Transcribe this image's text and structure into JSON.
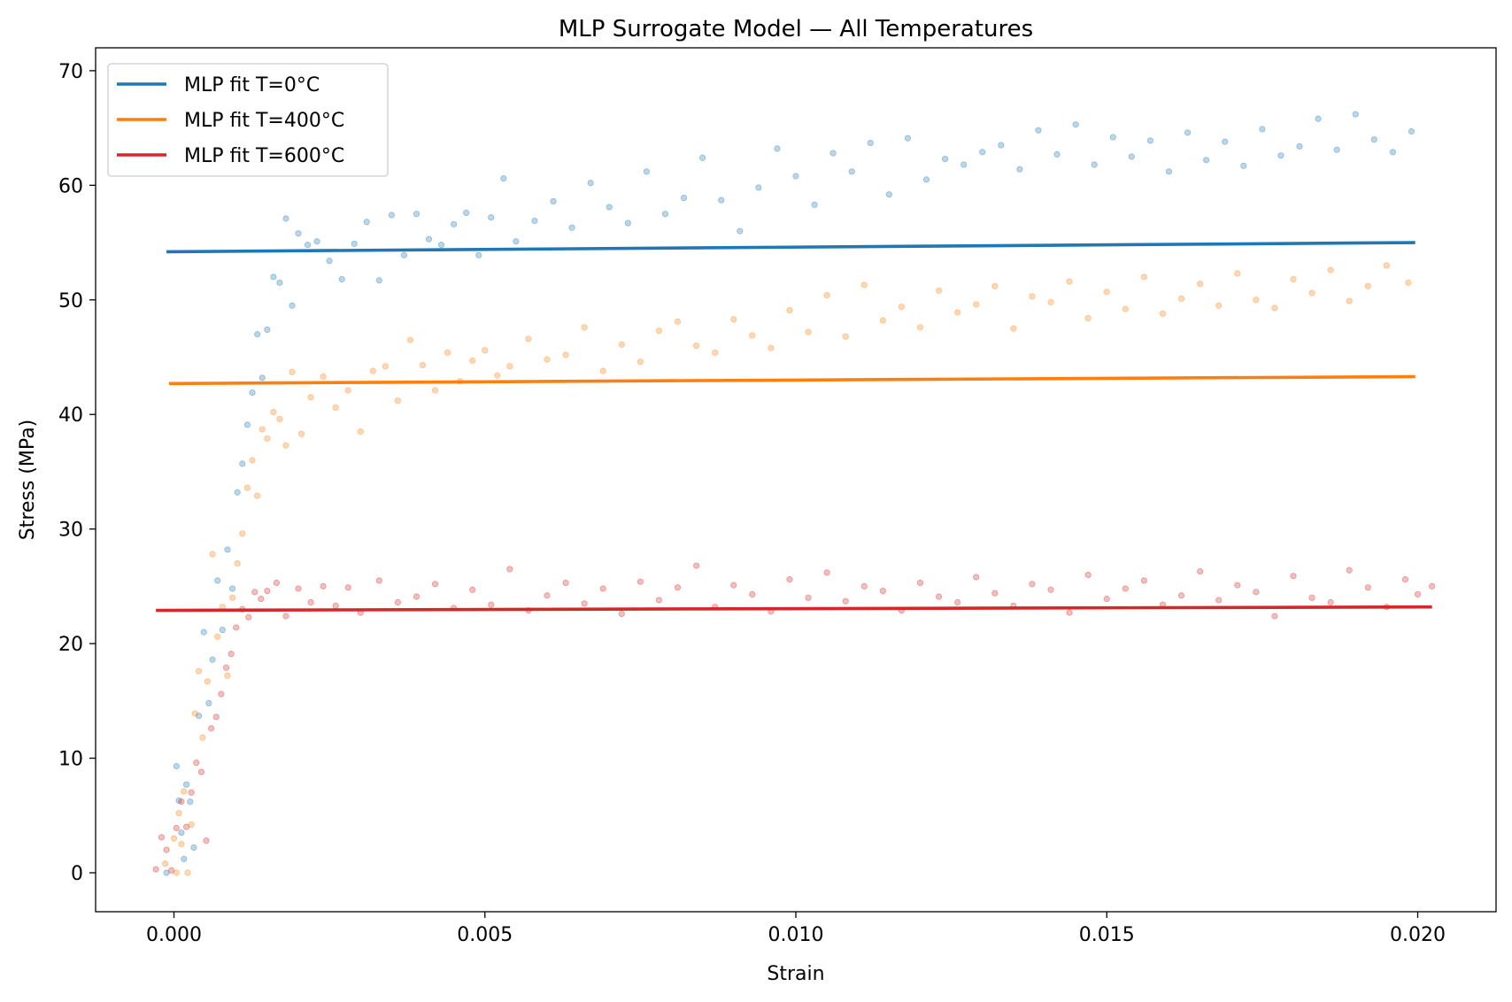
{
  "chart_data": {
    "type": "line",
    "title": "MLP Surrogate Model — All Temperatures",
    "xlabel": "Strain",
    "ylabel": "Stress (MPa)",
    "xlim": [
      -0.00126,
      0.02126
    ],
    "ylim": [
      -3.4,
      72
    ],
    "xticks": [
      0.0,
      0.005,
      0.01,
      0.015,
      0.02
    ],
    "xtick_labels": [
      "0.000",
      "0.005",
      "0.010",
      "0.015",
      "0.020"
    ],
    "yticks": [
      0,
      10,
      20,
      30,
      40,
      50,
      60,
      70
    ],
    "ytick_labels": [
      "0",
      "10",
      "20",
      "30",
      "40",
      "50",
      "60",
      "70"
    ],
    "grid": false,
    "legend_position": "top-left",
    "series": [
      {
        "name": "MLP fit T=0°C",
        "kind": "line",
        "color": "#1f77b4",
        "x": [
          -0.00012,
          0.01996
        ],
        "y": [
          54.2,
          55.0
        ]
      },
      {
        "name": "MLP fit T=400°C",
        "kind": "line",
        "color": "#ff7f0e",
        "x": [
          -8e-05,
          0.01996
        ],
        "y": [
          42.7,
          43.3
        ]
      },
      {
        "name": "MLP fit T=600°C",
        "kind": "line",
        "color": "#d62728",
        "x": [
          -0.00029,
          0.02023
        ],
        "y": [
          22.9,
          23.2
        ]
      }
    ],
    "scatter_series": [
      {
        "color": "#1f77b4",
        "opacity": 0.3,
        "x": [
          -0.00012,
          4e-05,
          8e-05,
          0.00012,
          0.00016,
          0.0002,
          0.00026,
          0.00032,
          0.0004,
          0.00048,
          0.00056,
          0.00062,
          0.0007,
          0.00078,
          0.00086,
          0.00094,
          0.00102,
          0.0011,
          0.00118,
          0.00126,
          0.00134,
          0.00142,
          0.0015,
          0.0016,
          0.0017,
          0.0018,
          0.0019,
          0.002,
          0.00215,
          0.0023,
          0.0025,
          0.0027,
          0.0029,
          0.0031,
          0.0033,
          0.0035,
          0.0037,
          0.0039,
          0.0041,
          0.0043,
          0.0045,
          0.0047,
          0.0049,
          0.0051,
          0.0053,
          0.0055,
          0.0058,
          0.0061,
          0.0064,
          0.0067,
          0.007,
          0.0073,
          0.0076,
          0.0079,
          0.0082,
          0.0085,
          0.0088,
          0.0091,
          0.0094,
          0.0097,
          0.01,
          0.0103,
          0.0106,
          0.0109,
          0.0112,
          0.0115,
          0.0118,
          0.0121,
          0.0124,
          0.0127,
          0.013,
          0.0133,
          0.0136,
          0.0139,
          0.0142,
          0.0145,
          0.0148,
          0.0151,
          0.0154,
          0.0157,
          0.016,
          0.0163,
          0.0166,
          0.0169,
          0.0172,
          0.0175,
          0.0178,
          0.0181,
          0.0184,
          0.0187,
          0.019,
          0.0193,
          0.0196,
          0.0199
        ],
        "y": [
          0.0,
          9.3,
          6.3,
          3.5,
          1.2,
          7.7,
          6.2,
          2.2,
          13.7,
          21.0,
          14.8,
          18.6,
          25.5,
          21.2,
          28.2,
          24.8,
          33.2,
          35.7,
          39.1,
          41.9,
          47.0,
          43.2,
          47.4,
          52.0,
          51.5,
          57.1,
          49.5,
          55.8,
          54.8,
          55.1,
          53.4,
          51.8,
          54.9,
          56.8,
          51.7,
          57.4,
          53.9,
          57.5,
          55.3,
          54.8,
          56.6,
          57.6,
          53.9,
          57.2,
          60.6,
          55.1,
          56.9,
          58.6,
          56.3,
          60.2,
          58.1,
          56.7,
          61.2,
          57.5,
          58.9,
          62.4,
          58.7,
          56.0,
          59.8,
          63.2,
          60.8,
          58.3,
          62.8,
          61.2,
          63.7,
          59.2,
          64.1,
          60.5,
          62.3,
          61.8,
          62.9,
          63.5,
          61.4,
          64.8,
          62.7,
          65.3,
          61.8,
          64.2,
          62.5,
          63.9,
          61.2,
          64.6,
          62.2,
          63.8,
          61.7,
          64.9,
          62.6,
          63.4,
          65.8,
          63.1,
          66.2,
          64.0,
          62.9,
          64.7
        ]
      },
      {
        "color": "#ff7f0e",
        "opacity": 0.3,
        "x": [
          -0.00014,
          0.0,
          4e-05,
          8e-05,
          0.00012,
          0.00016,
          0.00022,
          0.00028,
          0.00034,
          0.0004,
          0.00046,
          0.00054,
          0.00062,
          0.0007,
          0.00078,
          0.00086,
          0.00094,
          0.00102,
          0.0011,
          0.00118,
          0.00126,
          0.00134,
          0.00142,
          0.0015,
          0.0016,
          0.0017,
          0.0018,
          0.0019,
          0.00205,
          0.0022,
          0.0024,
          0.0026,
          0.0028,
          0.003,
          0.0032,
          0.0034,
          0.0036,
          0.0038,
          0.004,
          0.0042,
          0.0044,
          0.0046,
          0.0048,
          0.005,
          0.0052,
          0.0054,
          0.0057,
          0.006,
          0.0063,
          0.0066,
          0.0069,
          0.0072,
          0.0075,
          0.0078,
          0.0081,
          0.0084,
          0.0087,
          0.009,
          0.0093,
          0.0096,
          0.0099,
          0.0102,
          0.0105,
          0.0108,
          0.0111,
          0.0114,
          0.0117,
          0.012,
          0.0123,
          0.0126,
          0.0129,
          0.0132,
          0.0135,
          0.0138,
          0.0141,
          0.0144,
          0.0147,
          0.015,
          0.0153,
          0.0156,
          0.0159,
          0.0162,
          0.0165,
          0.0168,
          0.0171,
          0.0174,
          0.0177,
          0.018,
          0.0183,
          0.0186,
          0.0189,
          0.0192,
          0.0195,
          0.01985
        ],
        "y": [
          0.8,
          3.0,
          0.0,
          5.2,
          2.5,
          7.1,
          0.0,
          4.2,
          13.9,
          17.6,
          11.8,
          16.7,
          27.8,
          20.6,
          23.2,
          17.2,
          24.0,
          27.0,
          29.6,
          33.6,
          36.0,
          32.9,
          38.7,
          37.9,
          40.2,
          39.6,
          37.3,
          43.7,
          38.3,
          41.5,
          43.3,
          40.6,
          42.1,
          38.5,
          43.8,
          44.2,
          41.2,
          46.5,
          44.3,
          42.1,
          45.4,
          42.9,
          44.7,
          45.6,
          43.4,
          44.2,
          46.6,
          44.8,
          45.2,
          47.6,
          43.8,
          46.1,
          44.6,
          47.3,
          48.1,
          46.0,
          45.4,
          48.3,
          46.9,
          45.8,
          49.1,
          47.2,
          50.4,
          46.8,
          51.3,
          48.2,
          49.4,
          47.6,
          50.8,
          48.9,
          49.6,
          51.2,
          47.5,
          50.3,
          49.8,
          51.6,
          48.4,
          50.7,
          49.2,
          52.0,
          48.8,
          50.1,
          51.4,
          49.5,
          52.3,
          50.0,
          49.3,
          51.8,
          50.6,
          52.6,
          49.9,
          51.2,
          53.0,
          51.5
        ]
      },
      {
        "color": "#d62728",
        "opacity": 0.3,
        "x": [
          -0.00029,
          -0.0002,
          -0.00012,
          -4e-05,
          4e-05,
          0.00012,
          0.0002,
          0.00028,
          0.00036,
          0.00044,
          0.00052,
          0.0006,
          0.00068,
          0.00076,
          0.00084,
          0.00092,
          0.001,
          0.0011,
          0.0012,
          0.0013,
          0.0014,
          0.0015,
          0.00165,
          0.0018,
          0.002,
          0.0022,
          0.0024,
          0.0026,
          0.0028,
          0.003,
          0.0033,
          0.0036,
          0.0039,
          0.0042,
          0.0045,
          0.0048,
          0.0051,
          0.0054,
          0.0057,
          0.006,
          0.0063,
          0.0066,
          0.0069,
          0.0072,
          0.0075,
          0.0078,
          0.0081,
          0.0084,
          0.0087,
          0.009,
          0.0093,
          0.0096,
          0.0099,
          0.0102,
          0.0105,
          0.0108,
          0.0111,
          0.0114,
          0.0117,
          0.012,
          0.0123,
          0.0126,
          0.0129,
          0.0132,
          0.0135,
          0.0138,
          0.0141,
          0.0144,
          0.0147,
          0.015,
          0.0153,
          0.0156,
          0.0159,
          0.0162,
          0.0165,
          0.0168,
          0.0171,
          0.0174,
          0.0177,
          0.018,
          0.0183,
          0.0186,
          0.0189,
          0.0192,
          0.0195,
          0.0198,
          0.02,
          0.02023
        ],
        "y": [
          0.3,
          3.1,
          2.0,
          0.2,
          3.9,
          6.2,
          4.0,
          7.0,
          9.6,
          8.8,
          2.8,
          12.6,
          13.6,
          15.6,
          17.9,
          19.1,
          21.4,
          23.0,
          22.3,
          24.5,
          23.9,
          24.6,
          25.3,
          22.4,
          24.8,
          23.6,
          25.0,
          23.3,
          24.9,
          22.7,
          25.5,
          23.6,
          24.1,
          25.2,
          23.1,
          24.7,
          23.4,
          26.5,
          22.9,
          24.2,
          25.3,
          23.5,
          24.8,
          22.6,
          25.4,
          23.8,
          24.9,
          26.8,
          23.2,
          25.1,
          24.3,
          22.8,
          25.6,
          24.0,
          26.2,
          23.7,
          25.0,
          24.6,
          22.9,
          25.3,
          24.1,
          23.6,
          25.8,
          24.4,
          23.3,
          25.2,
          24.7,
          22.7,
          26.0,
          23.9,
          24.8,
          25.5,
          23.4,
          24.2,
          26.3,
          23.8,
          25.1,
          24.5,
          22.4,
          25.9,
          24.0,
          23.6,
          26.4,
          24.9,
          23.2,
          25.6,
          24.3,
          25.0
        ]
      }
    ]
  }
}
